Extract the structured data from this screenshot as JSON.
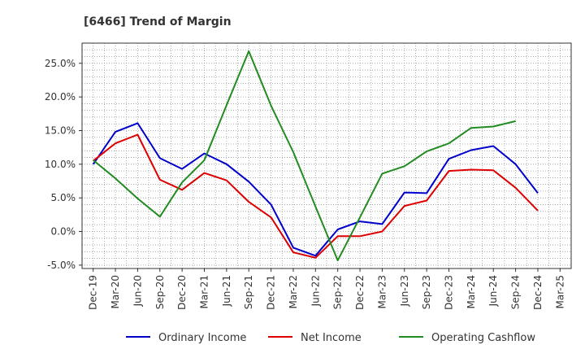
{
  "chart_data": {
    "type": "line",
    "title": "[6466]  Trend of Margin",
    "xlabel": "",
    "ylabel": "",
    "x": [
      "Dec-19",
      "Mar-20",
      "Jun-20",
      "Sep-20",
      "Dec-20",
      "Mar-21",
      "Jun-21",
      "Sep-21",
      "Dec-21",
      "Mar-22",
      "Jun-22",
      "Sep-22",
      "Dec-22",
      "Mar-23",
      "Jun-23",
      "Sep-23",
      "Dec-23",
      "Mar-24",
      "Jun-24",
      "Sep-24",
      "Dec-24",
      "Mar-25"
    ],
    "ylim": [
      -5.5,
      28.0
    ],
    "yticks": [
      -5.0,
      0.0,
      5.0,
      10.0,
      15.0,
      20.0,
      25.0
    ],
    "ytick_labels": [
      "-5.0%",
      "0.0%",
      "5.0%",
      "10.0%",
      "15.0%",
      "20.0%",
      "25.0%"
    ],
    "grid": true,
    "legend_position": "bottom",
    "series": [
      {
        "name": "Ordinary Income",
        "color": "#0000cc",
        "values": [
          10.0,
          14.8,
          16.1,
          10.9,
          9.3,
          11.6,
          10.0,
          7.4,
          4.0,
          -2.4,
          -3.6,
          0.3,
          1.5,
          1.1,
          5.8,
          5.7,
          10.8,
          12.1,
          12.7,
          10.0,
          5.7,
          null
        ]
      },
      {
        "name": "Net Income",
        "color": "#dd0000",
        "values": [
          10.5,
          13.1,
          14.4,
          7.7,
          6.2,
          8.7,
          7.6,
          4.4,
          2.1,
          -3.1,
          -3.9,
          -0.7,
          -0.7,
          0.0,
          3.8,
          4.6,
          9.0,
          9.2,
          9.1,
          6.5,
          3.1,
          null
        ]
      },
      {
        "name": "Operating Cashflow",
        "color": "#228b22",
        "values": [
          10.6,
          7.9,
          4.9,
          2.2,
          7.3,
          10.6,
          18.8,
          26.8,
          18.7,
          11.8,
          3.7,
          -4.3,
          2.1,
          8.6,
          9.7,
          11.9,
          13.1,
          15.4,
          15.6,
          16.4,
          null,
          null
        ]
      }
    ]
  }
}
